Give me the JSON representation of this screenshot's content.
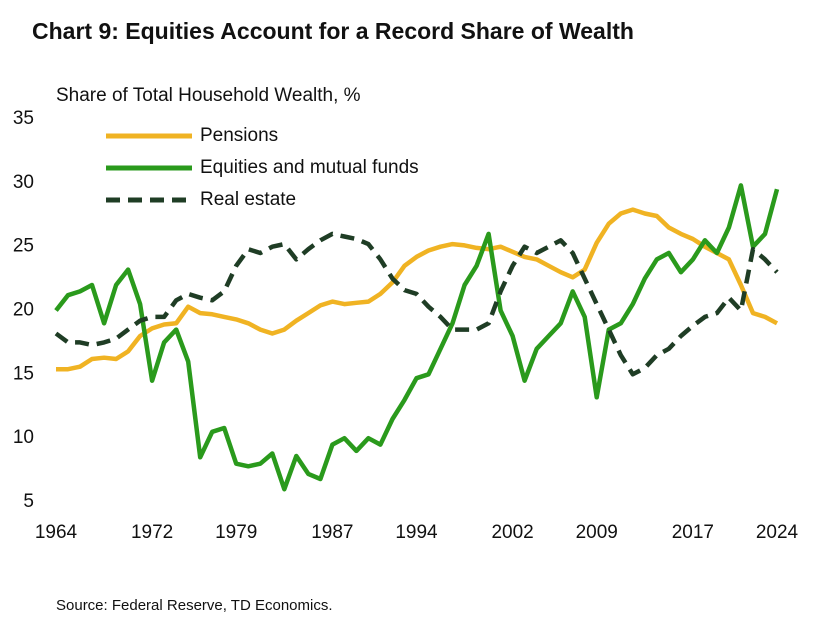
{
  "chart_data": {
    "type": "line",
    "title": "Chart 9: Equities Account for a Record Share of Wealth",
    "y_label": "Share of Total Household Wealth, %",
    "source": "Source: Federal Reserve, TD Economics.",
    "x": [
      1964,
      1965,
      1966,
      1967,
      1968,
      1969,
      1970,
      1971,
      1972,
      1973,
      1974,
      1975,
      1976,
      1977,
      1978,
      1979,
      1980,
      1981,
      1982,
      1983,
      1984,
      1985,
      1986,
      1987,
      1988,
      1989,
      1990,
      1991,
      1992,
      1993,
      1994,
      1995,
      1996,
      1997,
      1998,
      1999,
      2000,
      2001,
      2002,
      2003,
      2004,
      2005,
      2006,
      2007,
      2008,
      2009,
      2010,
      2011,
      2012,
      2013,
      2014,
      2015,
      2016,
      2017,
      2018,
      2019,
      2020,
      2021,
      2022,
      2023,
      2024
    ],
    "series": [
      {
        "name": "Pensions",
        "color": "#f0b323",
        "style": "solid",
        "values": [
          15.4,
          15.4,
          15.6,
          16.2,
          16.3,
          16.2,
          16.8,
          18.0,
          18.6,
          18.9,
          19.0,
          20.3,
          19.8,
          19.7,
          19.5,
          19.3,
          19.0,
          18.5,
          18.2,
          18.5,
          19.2,
          19.8,
          20.4,
          20.7,
          20.5,
          20.6,
          20.7,
          21.3,
          22.2,
          23.5,
          24.2,
          24.7,
          25.0,
          25.2,
          25.1,
          24.9,
          24.8,
          25.0,
          24.6,
          24.2,
          24.0,
          23.5,
          23.0,
          22.6,
          23.2,
          25.3,
          26.8,
          27.6,
          27.9,
          27.6,
          27.4,
          26.5,
          26.0,
          25.6,
          25.0,
          24.5,
          24.0,
          22.0,
          19.8,
          19.5,
          19.0
        ]
      },
      {
        "name": "Equities and mutual funds",
        "color": "#2a9a1c",
        "style": "solid",
        "values": [
          20.0,
          21.2,
          21.5,
          22.0,
          19.0,
          22.0,
          23.2,
          20.5,
          14.5,
          17.5,
          18.5,
          16.0,
          8.5,
          10.5,
          10.8,
          8.0,
          7.8,
          8.0,
          8.8,
          6.0,
          8.6,
          7.2,
          6.8,
          9.5,
          10.0,
          9.0,
          10.0,
          9.5,
          11.5,
          13.0,
          14.7,
          15.0,
          17.0,
          19.0,
          22.0,
          23.5,
          26.0,
          20.0,
          18.0,
          14.5,
          17.0,
          18.0,
          19.0,
          21.5,
          19.5,
          13.2,
          18.5,
          19.0,
          20.5,
          22.5,
          24.0,
          24.5,
          23.0,
          24.0,
          25.5,
          24.5,
          26.5,
          29.8,
          25.0,
          26.0,
          29.5
        ]
      },
      {
        "name": "Real estate",
        "color": "#1f3d25",
        "style": "dashed",
        "values": [
          18.2,
          17.5,
          17.5,
          17.3,
          17.5,
          17.8,
          18.5,
          19.2,
          19.5,
          19.5,
          20.8,
          21.3,
          21.0,
          20.8,
          21.5,
          23.5,
          24.8,
          24.5,
          25.0,
          25.2,
          24.0,
          24.8,
          25.5,
          26.0,
          25.8,
          25.6,
          25.2,
          24.0,
          22.5,
          21.6,
          21.3,
          20.3,
          19.5,
          18.5,
          18.5,
          18.5,
          19.0,
          21.5,
          23.5,
          25.0,
          24.5,
          25.0,
          25.5,
          24.5,
          22.5,
          20.5,
          18.5,
          16.5,
          15.0,
          15.5,
          16.5,
          17.0,
          18.0,
          18.8,
          19.5,
          19.8,
          21.0,
          20.0,
          24.8,
          24.0,
          23.0
        ]
      }
    ],
    "xlim": [
      1964,
      2024.5
    ],
    "xticks": [
      1964,
      1972,
      1979,
      1987,
      1994,
      2002,
      2009,
      2017,
      2024
    ],
    "ylim": [
      5,
      35
    ],
    "yticks": [
      5,
      10,
      15,
      20,
      25,
      30,
      35
    ],
    "grid": false,
    "legend": "top-left"
  }
}
